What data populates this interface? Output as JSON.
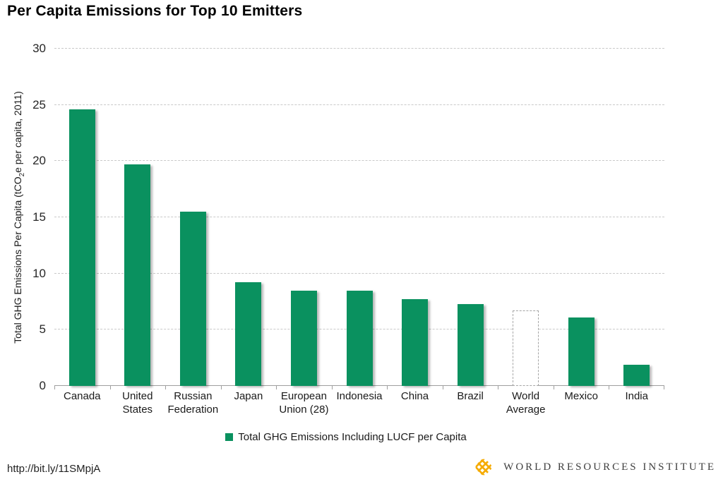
{
  "title": "Per Capita Emissions for Top 10 Emitters",
  "chart_data": {
    "type": "bar",
    "title": "Per Capita Emissions for Top 10 Emitters",
    "categories": [
      "Canada",
      "United States",
      "Russian Federation",
      "Japan",
      "European Union (28)",
      "Indonesia",
      "China",
      "Brazil",
      "World Average",
      "Mexico",
      "India"
    ],
    "values": [
      24.6,
      19.7,
      15.5,
      9.2,
      8.5,
      8.5,
      7.7,
      7.3,
      6.7,
      6.1,
      1.9
    ],
    "highlight_index": 8,
    "highlight_style": "white fill with gray dashed outline (World Average)",
    "xlabel": "",
    "ylabel": "Total GHG Emissions Per Capita (tCO2e per capita, 2011)",
    "ylabel_parts": {
      "prefix": "Total GHG Emissions Per Capita (tCO",
      "sub": "2",
      "suffix": "e per capita, 2011)"
    },
    "ylim": [
      0,
      30
    ],
    "yticks": [
      0,
      5,
      10,
      15,
      20,
      25,
      30
    ],
    "grid": "horizontal dashed gridlines",
    "legend_position": "bottom center",
    "legend": [
      {
        "label": "Total GHG Emissions Including LUCF per Capita",
        "color": "#0A915F"
      }
    ],
    "bar_color": "#0A915F",
    "highlight_border_color": "#a5a5a5",
    "gridline_color": "#c9c9c9",
    "axis_color": "#9f9f9f"
  },
  "footer": {
    "source_url": "http://bit.ly/11SMpjA",
    "logo_text": "WORLD RESOURCES INSTITUTE",
    "logo_color": "#F5AB00"
  }
}
